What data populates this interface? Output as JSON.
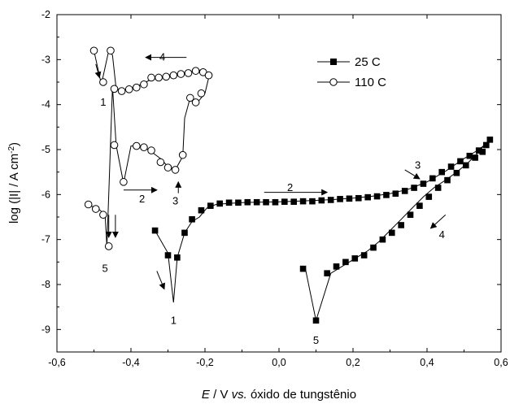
{
  "chart_data": {
    "type": "line",
    "x_axis": {
      "min": -0.6,
      "max": 0.6,
      "ticks": [
        -0.6,
        -0.4,
        -0.2,
        0.0,
        0.2,
        0.4,
        0.6
      ],
      "tick_labels": [
        "-0,6",
        "-0,4",
        "-0,2",
        "0,0",
        "0,2",
        "0,4",
        "0,6"
      ]
    },
    "y_axis": {
      "min": -9.5,
      "max": -2,
      "ticks": [
        -9,
        -8,
        -7,
        -6,
        -5,
        -4,
        -3,
        -2
      ],
      "tick_labels": [
        "-9",
        "-8",
        "-7",
        "-6",
        "-5",
        "-4",
        "-3",
        "-2"
      ]
    },
    "xlabel": {
      "italic": "E",
      "rest": " / V ",
      "vs": "vs.",
      "tail": " óxido de tungstênio"
    },
    "ylabel": {
      "main": "log (|I| / A cm",
      "sup": "-2",
      "close": ")"
    },
    "legend": {
      "position": "top-right"
    },
    "series": [
      {
        "name": "25 C",
        "marker": "filled-square",
        "line": [
          [
            -0.335,
            -6.8
          ],
          [
            -0.3,
            -7.3
          ],
          [
            -0.285,
            -8.4
          ],
          [
            -0.275,
            -7.4
          ],
          [
            -0.255,
            -6.85
          ],
          [
            -0.235,
            -6.6
          ],
          [
            -0.215,
            -6.5
          ],
          [
            -0.195,
            -6.3
          ],
          [
            -0.17,
            -6.22
          ],
          [
            -0.14,
            -6.2
          ],
          [
            -0.1,
            -6.18
          ],
          [
            -0.06,
            -6.17
          ],
          [
            0.0,
            -6.16
          ],
          [
            0.04,
            -6.15
          ],
          [
            0.1,
            -6.13
          ],
          [
            0.15,
            -6.11
          ],
          [
            0.2,
            -6.08
          ],
          [
            0.25,
            -6.04
          ],
          [
            0.3,
            -5.98
          ],
          [
            0.35,
            -5.88
          ],
          [
            0.4,
            -5.72
          ],
          [
            0.45,
            -5.48
          ],
          [
            0.5,
            -5.2
          ],
          [
            0.54,
            -5.0
          ],
          [
            0.57,
            -4.8
          ],
          [
            0.56,
            -4.85
          ],
          [
            0.54,
            -5.05
          ],
          [
            0.51,
            -5.3
          ],
          [
            0.48,
            -5.5
          ],
          [
            0.45,
            -5.68
          ],
          [
            0.42,
            -5.84
          ],
          [
            0.39,
            -6.05
          ],
          [
            0.36,
            -6.3
          ],
          [
            0.33,
            -6.55
          ],
          [
            0.3,
            -6.8
          ],
          [
            0.27,
            -7.05
          ],
          [
            0.24,
            -7.25
          ],
          [
            0.21,
            -7.4
          ],
          [
            0.18,
            -7.55
          ],
          [
            0.14,
            -7.75
          ],
          [
            0.1,
            -8.8
          ],
          [
            0.07,
            -7.6
          ]
        ],
        "points": [
          [
            -0.335,
            -6.8
          ],
          [
            -0.3,
            -7.35
          ],
          [
            -0.275,
            -7.4
          ],
          [
            -0.255,
            -6.85
          ],
          [
            -0.235,
            -6.55
          ],
          [
            -0.21,
            -6.35
          ],
          [
            -0.185,
            -6.25
          ],
          [
            -0.16,
            -6.2
          ],
          [
            -0.135,
            -6.18
          ],
          [
            -0.11,
            -6.18
          ],
          [
            -0.085,
            -6.17
          ],
          [
            -0.06,
            -6.17
          ],
          [
            -0.035,
            -6.17
          ],
          [
            -0.01,
            -6.17
          ],
          [
            0.015,
            -6.16
          ],
          [
            0.04,
            -6.16
          ],
          [
            0.065,
            -6.15
          ],
          [
            0.09,
            -6.15
          ],
          [
            0.115,
            -6.13
          ],
          [
            0.14,
            -6.12
          ],
          [
            0.165,
            -6.1
          ],
          [
            0.19,
            -6.09
          ],
          [
            0.215,
            -6.08
          ],
          [
            0.24,
            -6.06
          ],
          [
            0.265,
            -6.04
          ],
          [
            0.29,
            -6.01
          ],
          [
            0.315,
            -5.98
          ],
          [
            0.34,
            -5.92
          ],
          [
            0.365,
            -5.85
          ],
          [
            0.39,
            -5.76
          ],
          [
            0.415,
            -5.64
          ],
          [
            0.44,
            -5.5
          ],
          [
            0.465,
            -5.38
          ],
          [
            0.49,
            -5.26
          ],
          [
            0.515,
            -5.14
          ],
          [
            0.54,
            -5.02
          ],
          [
            0.56,
            -4.9
          ],
          [
            0.57,
            -4.78
          ],
          [
            0.55,
            -5.05
          ],
          [
            0.53,
            -5.18
          ],
          [
            0.505,
            -5.35
          ],
          [
            0.48,
            -5.52
          ],
          [
            0.455,
            -5.68
          ],
          [
            0.43,
            -5.85
          ],
          [
            0.405,
            -6.05
          ],
          [
            0.38,
            -6.25
          ],
          [
            0.355,
            -6.45
          ],
          [
            0.33,
            -6.68
          ],
          [
            0.305,
            -6.85
          ],
          [
            0.28,
            -7.0
          ],
          [
            0.255,
            -7.18
          ],
          [
            0.23,
            -7.35
          ],
          [
            0.205,
            -7.42
          ],
          [
            0.18,
            -7.5
          ],
          [
            0.155,
            -7.6
          ],
          [
            0.13,
            -7.75
          ],
          [
            0.1,
            -8.8
          ],
          [
            0.065,
            -7.65
          ]
        ]
      },
      {
        "name": "110 C",
        "marker": "open-circle",
        "line": [
          [
            -0.5,
            -2.8
          ],
          [
            -0.48,
            -3.55
          ],
          [
            -0.46,
            -2.8
          ],
          [
            -0.45,
            -2.9
          ],
          [
            -0.44,
            -3.65
          ],
          [
            -0.42,
            -3.68
          ],
          [
            -0.4,
            -3.64
          ],
          [
            -0.38,
            -3.58
          ],
          [
            -0.36,
            -3.5
          ],
          [
            -0.34,
            -3.42
          ],
          [
            -0.32,
            -3.38
          ],
          [
            -0.3,
            -3.35
          ],
          [
            -0.28,
            -3.32
          ],
          [
            -0.26,
            -3.3
          ],
          [
            -0.24,
            -3.28
          ],
          [
            -0.22,
            -3.22
          ],
          [
            -0.2,
            -3.28
          ],
          [
            -0.19,
            -3.4
          ],
          [
            -0.2,
            -3.75
          ],
          [
            -0.22,
            -3.95
          ],
          [
            -0.24,
            -3.85
          ],
          [
            -0.255,
            -4.3
          ],
          [
            -0.26,
            -5.15
          ],
          [
            -0.28,
            -5.45
          ],
          [
            -0.3,
            -5.38
          ],
          [
            -0.32,
            -5.2
          ],
          [
            -0.34,
            -5.08
          ],
          [
            -0.36,
            -4.96
          ],
          [
            -0.38,
            -4.92
          ],
          [
            -0.4,
            -4.92
          ],
          [
            -0.42,
            -5.75
          ],
          [
            -0.44,
            -4.9
          ],
          [
            -0.45,
            -3.6
          ],
          [
            -0.46,
            -6.0
          ],
          [
            -0.465,
            -7.15
          ],
          [
            -0.47,
            -6.45
          ],
          [
            -0.49,
            -6.3
          ],
          [
            -0.51,
            -6.25
          ],
          [
            -0.52,
            -6.2
          ]
        ],
        "points": [
          [
            -0.5,
            -2.8
          ],
          [
            -0.475,
            -3.5
          ],
          [
            -0.455,
            -2.8
          ],
          [
            -0.445,
            -3.65
          ],
          [
            -0.425,
            -3.7
          ],
          [
            -0.405,
            -3.66
          ],
          [
            -0.385,
            -3.62
          ],
          [
            -0.365,
            -3.55
          ],
          [
            -0.345,
            -3.4
          ],
          [
            -0.325,
            -3.4
          ],
          [
            -0.305,
            -3.38
          ],
          [
            -0.285,
            -3.35
          ],
          [
            -0.265,
            -3.32
          ],
          [
            -0.245,
            -3.3
          ],
          [
            -0.225,
            -3.25
          ],
          [
            -0.205,
            -3.28
          ],
          [
            -0.19,
            -3.35
          ],
          [
            -0.21,
            -3.75
          ],
          [
            -0.225,
            -3.95
          ],
          [
            -0.24,
            -3.85
          ],
          [
            -0.26,
            -5.12
          ],
          [
            -0.28,
            -5.45
          ],
          [
            -0.3,
            -5.4
          ],
          [
            -0.32,
            -5.28
          ],
          [
            -0.345,
            -5.02
          ],
          [
            -0.365,
            -4.95
          ],
          [
            -0.385,
            -4.92
          ],
          [
            -0.42,
            -5.72
          ],
          [
            -0.445,
            -4.9
          ],
          [
            -0.46,
            -7.15
          ],
          [
            -0.475,
            -6.45
          ],
          [
            -0.495,
            -6.32
          ],
          [
            -0.515,
            -6.22
          ]
        ]
      }
    ],
    "annotations": [
      {
        "text": "1",
        "x": -0.285,
        "y": -8.8
      },
      {
        "text": "2",
        "x": 0.03,
        "y": -5.85
      },
      {
        "text": "3",
        "x": 0.375,
        "y": -5.35
      },
      {
        "text": "4",
        "x": 0.44,
        "y": -6.9
      },
      {
        "text": "5",
        "x": 0.1,
        "y": -9.25
      },
      {
        "text": "1",
        "x": -0.475,
        "y": -3.95
      },
      {
        "text": "4",
        "x": -0.315,
        "y": -2.95
      },
      {
        "text": "2",
        "x": -0.37,
        "y": -6.1
      },
      {
        "text": "3",
        "x": -0.28,
        "y": -6.15
      },
      {
        "text": "5",
        "x": -0.47,
        "y": -7.65
      }
    ],
    "arrows": [
      {
        "from": [
          -0.33,
          -7.7
        ],
        "to": [
          -0.31,
          -8.1
        ]
      },
      {
        "from": [
          -0.04,
          -5.95
        ],
        "to": [
          0.13,
          -5.95
        ]
      },
      {
        "from": [
          0.34,
          -5.45
        ],
        "to": [
          0.38,
          -5.65
        ]
      },
      {
        "from": [
          0.45,
          -6.45
        ],
        "to": [
          0.41,
          -6.75
        ]
      },
      {
        "from": [
          -0.495,
          -3.1
        ],
        "to": [
          -0.485,
          -3.4
        ]
      },
      {
        "from": [
          -0.25,
          -2.95
        ],
        "to": [
          -0.36,
          -2.95
        ]
      },
      {
        "from": [
          -0.42,
          -5.9
        ],
        "to": [
          -0.33,
          -5.9
        ]
      },
      {
        "from": [
          -0.272,
          -5.97
        ],
        "to": [
          -0.272,
          -5.72
        ]
      },
      {
        "from": [
          -0.46,
          -6.45
        ],
        "to": [
          -0.46,
          -6.95
        ]
      },
      {
        "from": [
          -0.442,
          -6.45
        ],
        "to": [
          -0.442,
          -6.95
        ]
      }
    ]
  }
}
